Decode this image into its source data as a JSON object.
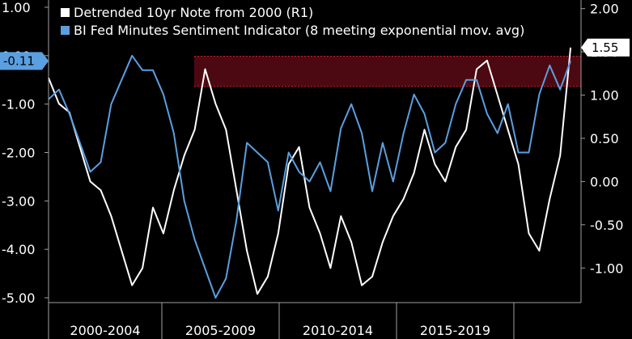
{
  "chart_data": {
    "type": "line",
    "left_axis": {
      "ylim": [
        -5.1,
        1.15
      ],
      "ticks": [
        "1.00",
        "0.00",
        "-1.00",
        "-2.00",
        "-3.00",
        "-4.00",
        "-5.00"
      ],
      "tick_values": [
        1,
        0,
        -1,
        -2,
        -3,
        -4,
        -5
      ]
    },
    "right_axis": {
      "ylim": [
        -1.4,
        2.1
      ],
      "ticks": [
        "2.00",
        "1.50",
        "1.00",
        "0.50",
        "0.00",
        "-0.50",
        "-1.00"
      ],
      "tick_values": [
        2,
        1.5,
        1,
        0.5,
        0,
        -0.5,
        -1
      ]
    },
    "x_categories": [
      "2000-2004",
      "2005-2009",
      "2010-2014",
      "2015-2019"
    ],
    "xlim": [
      0,
      25.5
    ],
    "grid": false,
    "legend_placement": "top-left",
    "colors": {
      "background": "#000000",
      "series_white": "#ffffff",
      "series_blue": "#5a9fe0",
      "band_fill": "#5a0a14",
      "band_border": "#d22030",
      "axis": "#a0a0a0"
    },
    "series": [
      {
        "name": "Detrended 10yr Note from 2000 (R1)",
        "axis": "right",
        "color": "#ffffff",
        "last_value_label": "1.55",
        "x": [
          0,
          0.5,
          1,
          1.5,
          2,
          2.5,
          3,
          3.5,
          4,
          4.5,
          5,
          5.5,
          6,
          6.5,
          7,
          7.5,
          8,
          8.5,
          9,
          9.5,
          10,
          10.5,
          11,
          11.5,
          12,
          12.5,
          13,
          13.5,
          14,
          14.5,
          15,
          15.5,
          16,
          16.5,
          17,
          17.5,
          18,
          18.5,
          19,
          19.5,
          20,
          20.5,
          21,
          21.5,
          22,
          22.5,
          23,
          23.5,
          24,
          24.5,
          25
        ],
        "values": [
          1.2,
          0.9,
          0.8,
          0.4,
          0.0,
          -0.1,
          -0.4,
          -0.8,
          -1.2,
          -1.0,
          -0.3,
          -0.6,
          -0.1,
          0.3,
          0.6,
          1.3,
          0.9,
          0.6,
          -0.1,
          -0.8,
          -1.3,
          -1.1,
          -0.6,
          0.2,
          0.4,
          -0.3,
          -0.6,
          -1.0,
          -0.4,
          -0.7,
          -1.2,
          -1.1,
          -0.7,
          -0.4,
          -0.2,
          0.1,
          0.6,
          0.2,
          0.0,
          0.4,
          0.6,
          1.3,
          1.4,
          1.0,
          0.6,
          0.2,
          -0.6,
          -0.8,
          -0.2,
          0.3,
          1.55
        ]
      },
      {
        "name": "BI Fed Minutes Sentiment Indicator (8 meeting exponential mov. avg)",
        "axis": "left",
        "color": "#5a9fe0",
        "last_value_label": "-0.11",
        "x": [
          0,
          0.5,
          1,
          1.5,
          2,
          2.5,
          3,
          3.5,
          4,
          4.5,
          5,
          5.5,
          6,
          6.5,
          7,
          7.5,
          8,
          8.5,
          9,
          9.5,
          10,
          10.5,
          11,
          11.5,
          12,
          12.5,
          13,
          13.5,
          14,
          14.5,
          15,
          15.5,
          16,
          16.5,
          17,
          17.5,
          18,
          18.5,
          19,
          19.5,
          20,
          20.5,
          21,
          21.5,
          22,
          22.5,
          23,
          23.5,
          24,
          24.5,
          25
        ],
        "values": [
          -0.9,
          -0.7,
          -1.2,
          -1.8,
          -2.4,
          -2.2,
          -1.0,
          -0.5,
          0.0,
          -0.3,
          -0.3,
          -0.8,
          -1.6,
          -3.0,
          -3.8,
          -4.4,
          -5.0,
          -4.6,
          -3.4,
          -1.8,
          -2.0,
          -2.2,
          -3.2,
          -2.0,
          -2.4,
          -2.6,
          -2.2,
          -2.8,
          -1.5,
          -1.0,
          -1.6,
          -2.8,
          -1.8,
          -2.6,
          -1.6,
          -0.8,
          -1.2,
          -2.0,
          -1.8,
          -1.0,
          -0.5,
          -0.5,
          -1.2,
          -1.6,
          -1.0,
          -2.0,
          -2.0,
          -0.8,
          -0.2,
          -0.7,
          -0.11
        ]
      }
    ],
    "band": {
      "axis": "right",
      "range": [
        1.1,
        1.45
      ]
    }
  }
}
